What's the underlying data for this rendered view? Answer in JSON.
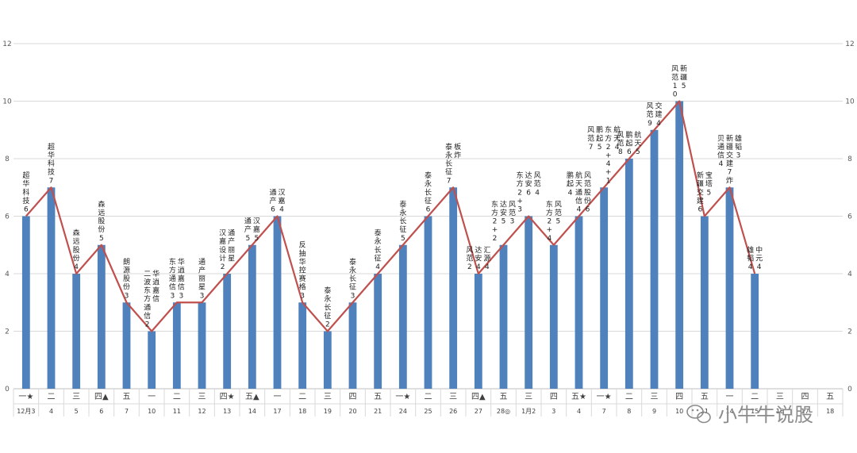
{
  "chart_data": {
    "type": "bar+line",
    "ylim": [
      0,
      12
    ],
    "yticks": [
      0,
      2,
      4,
      6,
      8,
      10,
      12
    ],
    "grid": true,
    "weekday_labels": [
      "一★",
      "二",
      "三",
      "四▲",
      "五",
      "一",
      "二",
      "三",
      "四★",
      "五▲",
      "一",
      "二",
      "三",
      "四",
      "五",
      "一★",
      "二",
      "三",
      "四▲",
      "五",
      "三",
      "四",
      "五★",
      "一★",
      "二",
      "三",
      "四",
      "五",
      "一",
      "二",
      "三",
      "四",
      "五"
    ],
    "date_labels": [
      "12月3",
      "4",
      "5",
      "6",
      "7",
      "10",
      "11",
      "12",
      "13",
      "14",
      "17",
      "18",
      "19",
      "20",
      "21",
      "24",
      "25",
      "26",
      "27",
      "28◎",
      "1月2",
      "3",
      "4",
      "7",
      "8",
      "9",
      "10",
      "11",
      "14",
      "15",
      "16",
      "17",
      "18"
    ],
    "values": [
      6,
      7,
      4,
      5,
      3,
      2,
      3,
      3,
      4,
      5,
      6,
      3,
      2,
      3,
      4,
      5,
      6,
      7,
      4,
      5,
      6,
      5,
      6,
      7,
      8,
      9,
      10,
      6,
      7,
      4,
      null,
      null,
      null
    ],
    "annotations": [
      [
        "超华科技6"
      ],
      [
        "超华科技7"
      ],
      [
        "森远股份4"
      ],
      [
        "森远股份5"
      ],
      [
        "朗源股份3"
      ],
      [
        "二波东方通信2",
        "华逍嘉信"
      ],
      [
        "东方通信3",
        "华逍嘉信3"
      ],
      [
        "通产丽星3"
      ],
      [
        "汉嘉设计2",
        "通产丽星"
      ],
      [
        "通产5",
        "汉嘉5"
      ],
      [
        "通产6",
        "汉嘉4"
      ],
      [
        "反抽华控赛格3"
      ],
      [
        "泰永长征2"
      ],
      [
        "泰永长征3"
      ],
      [
        "泰永长征4"
      ],
      [
        "泰永长征5"
      ],
      [
        "泰永长征6"
      ],
      [
        "泰永长征7",
        "板炸"
      ],
      [
        "风范2",
        "达安4",
        "汇源4"
      ],
      [
        "东方2+2",
        "达安5",
        "风范3"
      ],
      [
        "东方2+3",
        "达安6",
        "风范4"
      ],
      [
        "东方2+4",
        "风范5"
      ],
      [
        "鹏起4",
        "航天通信4",
        "风范股份6"
      ],
      [
        "风范7",
        "鹏起5",
        "东方2+4+1",
        "航天4"
      ],
      [
        "风范8",
        "鹏起6",
        "航天5"
      ],
      [
        "风范9",
        "交建4"
      ],
      [
        "风范10",
        "新疆5"
      ],
      [
        "新疆交建6",
        "宝塔5"
      ],
      [
        "贝通信4",
        "新疆交建7炸",
        "雄韬3"
      ],
      [
        "雄韬4",
        "中元4"
      ]
    ]
  },
  "watermark": "小牛牛说股",
  "colors": {
    "bar": "#4f81bd",
    "line": "#c0504d",
    "grid": "#d9d9d9"
  }
}
